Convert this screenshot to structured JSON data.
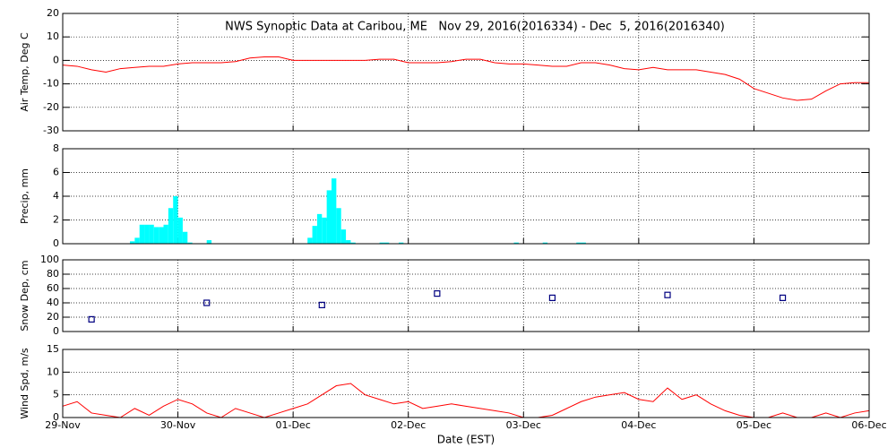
{
  "chart_data": [
    {
      "type": "line",
      "title": "NWS Synoptic Data at Caribou, ME   Nov 29, 2016(2016334) - Dec  5, 2016(2016340)",
      "ylabel": "Air Temp, Deg C",
      "color": "#ff0000",
      "x": [
        0,
        3,
        6,
        9,
        12,
        15,
        18,
        21,
        24,
        27,
        30,
        33,
        36,
        39,
        42,
        45,
        48,
        51,
        54,
        57,
        60,
        63,
        66,
        69,
        72,
        75,
        78,
        81,
        84,
        87,
        90,
        93,
        96,
        99,
        102,
        105,
        108,
        111,
        114,
        117,
        120,
        123,
        126,
        129,
        132,
        135,
        138,
        141,
        144,
        147,
        150,
        153,
        156,
        159,
        162,
        165,
        168
      ],
      "values": [
        -2,
        -2.5,
        -4,
        -5,
        -3.5,
        -3,
        -2.5,
        -2.5,
        -1.5,
        -1,
        -1,
        -1,
        -0.5,
        1,
        1.5,
        1.5,
        0,
        0,
        0,
        0,
        0,
        0,
        0.5,
        0.5,
        -1,
        -1,
        -1,
        -0.5,
        0.5,
        0.5,
        -1,
        -1.5,
        -1.5,
        -2,
        -2.5,
        -2.5,
        -1,
        -1,
        -2,
        -3.5,
        -4,
        -3,
        -4,
        -4,
        -4,
        -5,
        -6,
        -8,
        -12,
        -14,
        -16,
        -17,
        -16.5,
        -13,
        -10,
        -9.5,
        -9.5
      ],
      "xlim": [
        0,
        168
      ],
      "xticks": [
        24,
        48,
        72,
        96,
        120,
        144
      ],
      "ylim": [
        -30,
        20
      ],
      "yticks": [
        -30,
        -20,
        -10,
        0,
        10,
        20
      ],
      "grid": true
    },
    {
      "type": "bar",
      "ylabel": "Precip, mm",
      "color": "#00ffff",
      "x": [
        14,
        15,
        16,
        17,
        18,
        19,
        20,
        21,
        22,
        23,
        24,
        25,
        26,
        30,
        51,
        52,
        53,
        54,
        55,
        56,
        57,
        58,
        59,
        60,
        66,
        67,
        70,
        94,
        100,
        107,
        108
      ],
      "values": [
        0.2,
        0.5,
        1.6,
        1.6,
        1.6,
        1.4,
        1.4,
        1.6,
        3.0,
        4.0,
        2.2,
        1.0,
        0.1,
        0.3,
        0.5,
        1.5,
        2.5,
        2.2,
        4.5,
        5.5,
        3.0,
        1.2,
        0.3,
        0.1,
        0.1,
        0.1,
        0.1,
        0.1,
        0.1,
        0.1,
        0.1
      ],
      "xlim": [
        0,
        168
      ],
      "xticks": [
        24,
        48,
        72,
        96,
        120,
        144
      ],
      "ylim": [
        0,
        8
      ],
      "yticks": [
        0,
        2,
        4,
        6,
        8
      ],
      "grid": true
    },
    {
      "type": "scatter",
      "ylabel": "Snow Dep, cm",
      "color": "#000080",
      "x": [
        6,
        30,
        54,
        78,
        102,
        126,
        150
      ],
      "values": [
        17,
        40,
        37,
        53,
        47,
        51,
        47
      ],
      "xlim": [
        0,
        168
      ],
      "xticks": [
        24,
        48,
        72,
        96,
        120,
        144
      ],
      "ylim": [
        0,
        100
      ],
      "yticks": [
        0,
        20,
        40,
        60,
        80,
        100
      ],
      "grid": true
    },
    {
      "type": "line",
      "ylabel": "Wind Spd, m/s",
      "xlabel": "Date (EST)",
      "color": "#ff0000",
      "x": [
        0,
        3,
        6,
        9,
        12,
        15,
        18,
        21,
        24,
        27,
        30,
        33,
        36,
        39,
        42,
        45,
        48,
        51,
        54,
        57,
        60,
        63,
        66,
        69,
        72,
        75,
        78,
        81,
        84,
        87,
        90,
        93,
        96,
        99,
        102,
        105,
        108,
        111,
        114,
        117,
        120,
        123,
        126,
        129,
        132,
        135,
        138,
        141,
        144,
        147,
        150,
        153,
        156,
        159,
        162,
        165,
        168
      ],
      "values": [
        2.5,
        3.5,
        1,
        0.5,
        0,
        2,
        0.5,
        2.5,
        4,
        3,
        1,
        0,
        2,
        1,
        0,
        1,
        2,
        3,
        5,
        7,
        7.5,
        5,
        4,
        3,
        3.5,
        2,
        2.5,
        3,
        2.5,
        2,
        1.5,
        1,
        0,
        0,
        0.5,
        2,
        3.5,
        4.5,
        5,
        5.5,
        4,
        3.5,
        6.5,
        4,
        5,
        3,
        1.5,
        0.5,
        0,
        0,
        1,
        0,
        0,
        1,
        0,
        1,
        1.5
      ],
      "xlim": [
        0,
        168
      ],
      "xticks": [
        {
          "value": 0,
          "label": "29-Nov"
        },
        {
          "value": 24,
          "label": "30-Nov"
        },
        {
          "value": 48,
          "label": "01-Dec"
        },
        {
          "value": 72,
          "label": "02-Dec"
        },
        {
          "value": 96,
          "label": "03-Dec"
        },
        {
          "value": 120,
          "label": "04-Dec"
        },
        {
          "value": 144,
          "label": "05-Dec"
        },
        {
          "value": 168,
          "label": "06-Dec"
        }
      ],
      "ylim": [
        0,
        15
      ],
      "yticks": [
        0,
        5,
        10,
        15
      ],
      "grid": true
    }
  ]
}
